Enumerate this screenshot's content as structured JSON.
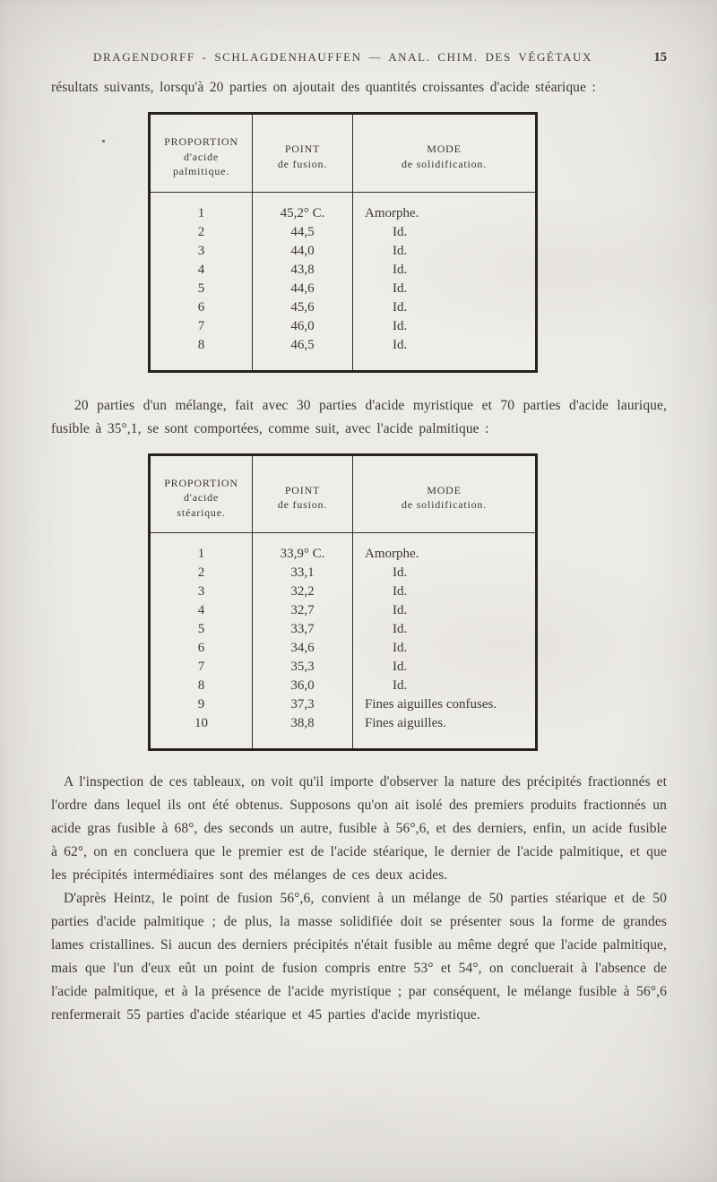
{
  "page": {
    "header": {
      "title": "DRAGENDORFF - SCHLAGDENHAUFFEN — ANAL. CHIM. DES VÉGÉTAUX",
      "page_number": "15"
    },
    "paragraphs": {
      "p1": "résultats suivants, lorsqu'à 20 parties on ajoutait des quantités croissantes d'acide stéarique :",
      "p2": "20 parties d'un mélange, fait avec 30 parties d'acide myristique et 70 parties d'acide laurique, fusible à 35°,1, se sont comportées, comme suit, avec l'acide palmitique :",
      "p3": "A l'inspection de ces tableaux, on voit qu'il importe d'observer la nature des précipités fractionnés et l'ordre dans lequel ils ont été obtenus. Supposons qu'on ait isolé des premiers produits fractionnés un acide gras fusible à 68°, des seconds un autre, fusible à 56°,6, et des derniers, enfin, un acide fusible à 62°, on en concluera que le premier est de l'acide stéarique, le dernier de l'acide palmitique, et que les précipités intermédiaires sont des mélanges de ces deux acides.",
      "p4": "D'après Heintz, le point de fusion 56°,6, convient à un mélange de 50 parties stéarique et de 50 parties d'acide palmitique ; de plus, la masse solidifiée doit se présenter sous la forme de grandes lames cristallines. Si aucun des derniers précipités n'était fusible au même degré que l'acide palmitique, mais que l'un d'eux eût un point de fusion compris entre 53° et 54°, on concluerait à l'absence de l'acide palmitique, et à la présence de l'acide myristique ; par conséquent, le mélange fusible à 56°,6 renfermerait 55 parties d'acide stéarique et 45 parties d'acide myristique."
    }
  },
  "tables": [
    {
      "headers": [
        "PROPORTION\nd'acide\npalmitique.",
        "POINT\nde fusion.",
        "MODE\nde solidification."
      ],
      "rows": [
        [
          "1",
          "45,2° C.",
          "Amorphe."
        ],
        [
          "2",
          "44,5",
          "Id."
        ],
        [
          "3",
          "44,0",
          "Id."
        ],
        [
          "4",
          "43,8",
          "Id."
        ],
        [
          "5",
          "44,6",
          "Id."
        ],
        [
          "6",
          "45,6",
          "Id."
        ],
        [
          "7",
          "46,0",
          "Id."
        ],
        [
          "8",
          "46,5",
          "Id."
        ]
      ]
    },
    {
      "headers": [
        "PROPORTION\nd'acide\nstéarique.",
        "POINT\nde fusion.",
        "MODE\nde solidification."
      ],
      "rows": [
        [
          "1",
          "33,9° C.",
          "Amorphe."
        ],
        [
          "2",
          "33,1",
          "Id."
        ],
        [
          "3",
          "32,2",
          "Id."
        ],
        [
          "4",
          "32,7",
          "Id."
        ],
        [
          "5",
          "33,7",
          "Id."
        ],
        [
          "6",
          "34,6",
          "Id."
        ],
        [
          "7",
          "35,3",
          "Id."
        ],
        [
          "8",
          "36,0",
          "Id."
        ],
        [
          "9",
          "37,3",
          "Fines aiguilles confuses."
        ],
        [
          "10",
          "38,8",
          "Fines aiguilles."
        ]
      ]
    }
  ]
}
